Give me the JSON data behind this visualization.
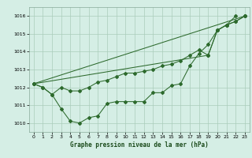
{
  "xlabel": "Graphe pression niveau de la mer (hPa)",
  "plot_bg_color": "#d5eee5",
  "grid_color": "#aaccbb",
  "line_color": "#2d6a2d",
  "xlim": [
    -0.5,
    23.5
  ],
  "ylim": [
    1009.5,
    1016.5
  ],
  "yticks": [
    1010,
    1011,
    1012,
    1013,
    1014,
    1015,
    1016
  ],
  "xticks": [
    0,
    1,
    2,
    3,
    4,
    5,
    6,
    7,
    8,
    9,
    10,
    11,
    12,
    13,
    14,
    15,
    16,
    17,
    18,
    19,
    20,
    21,
    22,
    23
  ],
  "series": [
    {
      "hours": [
        0,
        1,
        2,
        3,
        4,
        5,
        6,
        7,
        8,
        9,
        10,
        11,
        12,
        13,
        14,
        15,
        16,
        17,
        18,
        19,
        20,
        21,
        22
      ],
      "values": [
        1012.2,
        1012.0,
        1011.6,
        1010.8,
        1010.1,
        1010.0,
        1010.3,
        1010.4,
        1011.1,
        1011.2,
        1011.2,
        1011.2,
        1011.2,
        1011.7,
        1011.7,
        1012.1,
        1012.2,
        1013.2,
        1013.9,
        1014.4,
        1015.2,
        1015.5,
        1016.0
      ]
    },
    {
      "hours": [
        0,
        1,
        2,
        3,
        4,
        5,
        6,
        7,
        8,
        9,
        10,
        11,
        12,
        13,
        14,
        15,
        16,
        17,
        18,
        19,
        20,
        21,
        22,
        23
      ],
      "values": [
        1012.2,
        1012.0,
        1011.6,
        1012.0,
        1011.8,
        1011.8,
        1012.0,
        1012.3,
        1012.4,
        1012.6,
        1012.8,
        1012.8,
        1012.9,
        1013.0,
        1013.2,
        1013.3,
        1013.5,
        1013.8,
        1014.1,
        1013.8,
        1015.2,
        1015.5,
        1015.7,
        1016.0
      ]
    },
    {
      "hours": [
        0,
        23
      ],
      "values": [
        1012.2,
        1016.0
      ]
    },
    {
      "hours": [
        0,
        19,
        20,
        21,
        22,
        23
      ],
      "values": [
        1012.2,
        1013.8,
        1015.2,
        1015.5,
        1015.7,
        1016.0
      ]
    }
  ]
}
